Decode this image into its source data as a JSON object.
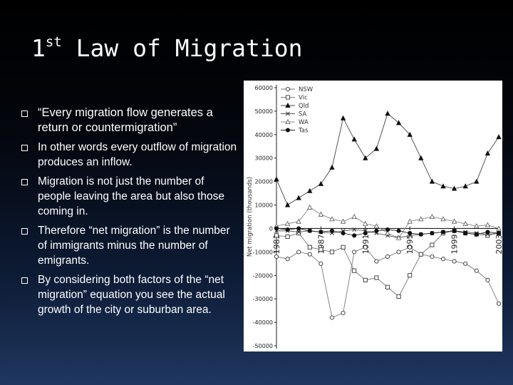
{
  "slide": {
    "title_main": "1",
    "title_sup": "st",
    "title_rest": " Law of Migration",
    "bullets": [
      "“Every migration flow generates a return or countermigration”",
      "In other words every outflow of migration produces an inflow.",
      "Migration is not just the number of people leaving the area but also those coming in.",
      "Therefore “net migration” is the number of immigrants minus the number of emigrants.",
      "By considering both factors of the “net migration” equation you see the actual growth of the city or suburban area."
    ]
  },
  "chart_data": {
    "type": "line",
    "ylabel": "Net migration (thousands)",
    "ylim": [
      -50000,
      60000
    ],
    "yticks": [
      "60000",
      "50000",
      "40000",
      "30000",
      "20000",
      "10000",
      "0",
      "-10000",
      "-20000",
      "-30000",
      "-40000",
      "-50000"
    ],
    "x": [
      1983,
      1984,
      1985,
      1986,
      1987,
      1988,
      1989,
      1990,
      1991,
      1992,
      1993,
      1994,
      1995,
      1996,
      1997,
      1998,
      1999,
      2000,
      2001,
      2002,
      2003
    ],
    "xticks": [
      "1983",
      "1987",
      "1991",
      "1995",
      "1999",
      "2003"
    ],
    "grid": false,
    "legend_position": "top-left",
    "series": [
      {
        "name": "NSW",
        "marker": "circle-open",
        "values": [
          -12000,
          -13000,
          -10000,
          -11000,
          -15000,
          -38000,
          -36000,
          -10000,
          -8000,
          -14000,
          -12000,
          -10000,
          -8000,
          -11000,
          -12000,
          -13000,
          -14000,
          -15000,
          -18000,
          -22000,
          -32000
        ]
      },
      {
        "name": "Vic",
        "marker": "square-open",
        "values": [
          -3000,
          -3500,
          -2000,
          -8000,
          -9000,
          -10000,
          -8000,
          -18000,
          -22000,
          -21000,
          -25000,
          -29000,
          -20000,
          -11000,
          -7000,
          -2000,
          -1000,
          -2000,
          -2500,
          -3000,
          -2000
        ]
      },
      {
        "name": "Qld",
        "marker": "triangle-filled",
        "values": [
          21000,
          10000,
          13000,
          16000,
          19000,
          26000,
          47000,
          38000,
          30000,
          34000,
          49000,
          45000,
          40000,
          30000,
          20000,
          18000,
          17000,
          18000,
          20000,
          32000,
          39000
        ]
      },
      {
        "name": "SA",
        "marker": "x",
        "values": [
          -1000,
          -1000,
          -1500,
          -1000,
          -1500,
          -2000,
          -1000,
          -500,
          -1000,
          -2000,
          -3000,
          -4000,
          -3000,
          -2500,
          -2000,
          -1500,
          -1000,
          -1500,
          -2000,
          -2500,
          -2000
        ]
      },
      {
        "name": "WA",
        "marker": "triangle-open",
        "values": [
          1000,
          2000,
          3000,
          9000,
          6000,
          4000,
          3000,
          5000,
          2000,
          1000,
          -2000,
          -4000,
          3000,
          4000,
          5000,
          4000,
          3000,
          2000,
          1000,
          1500,
          0
        ]
      },
      {
        "name": "Tas",
        "marker": "circle-filled",
        "values": [
          0,
          -500,
          0,
          -1000,
          -1500,
          -1000,
          -2000,
          -3000,
          -2000,
          -1000,
          -500,
          -1000,
          -2000,
          -2500,
          -2000,
          -1500,
          -1000,
          -2000,
          -2500,
          -1500,
          -2000
        ]
      }
    ]
  }
}
